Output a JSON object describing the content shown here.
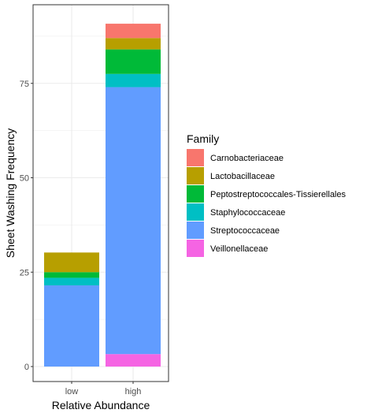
{
  "chart_data": {
    "type": "bar",
    "stacked": true,
    "categories": [
      "low",
      "high"
    ],
    "xlabel": "Relative Abundance",
    "ylabel": "Sheet Washing Frequency",
    "ylim": [
      0,
      95
    ],
    "yticks": [
      0,
      25,
      50,
      75
    ],
    "grid": true,
    "legend_position": "right",
    "legend_title": "Family",
    "series": [
      {
        "name": "Veillonellaceae",
        "color": "#F564E3",
        "values": [
          0,
          3.3
        ]
      },
      {
        "name": "Streptococcaceae",
        "color": "#619CFF",
        "values": [
          21.5,
          70.7
        ]
      },
      {
        "name": "Staphylococcaceae",
        "color": "#00BFC4",
        "values": [
          2.0,
          3.5
        ]
      },
      {
        "name": "Peptostreptococcales-Tissierellales",
        "color": "#00BA38",
        "values": [
          1.5,
          6.5
        ]
      },
      {
        "name": "Lactobacillaceae",
        "color": "#B79F00",
        "values": [
          5.2,
          3.0
        ]
      },
      {
        "name": "Carnobacteriaceae",
        "color": "#F8766D",
        "values": [
          0,
          3.8
        ]
      }
    ],
    "legend_order": [
      "Carnobacteriaceae",
      "Lactobacillaceae",
      "Peptostreptococcales-Tissierellales",
      "Staphylococcaceae",
      "Streptococcaceae",
      "Veillonellaceae"
    ]
  }
}
